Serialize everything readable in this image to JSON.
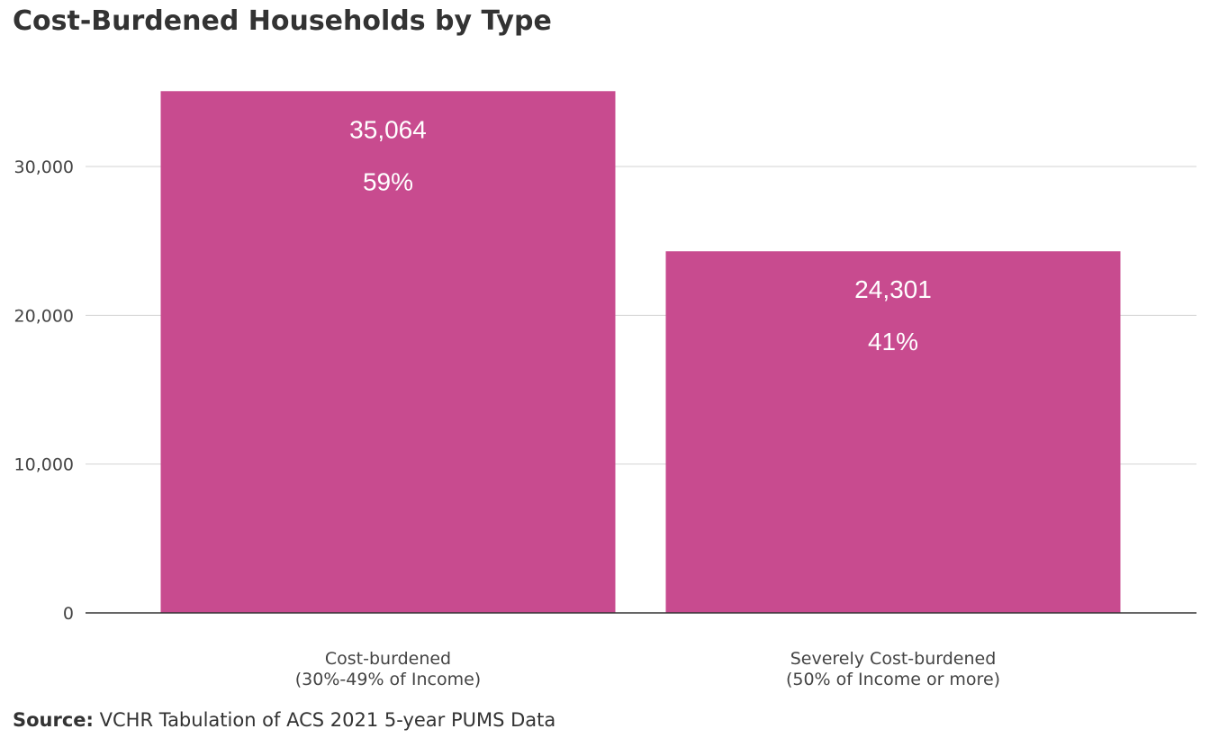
{
  "title": "Cost-Burdened Households by Type",
  "source": {
    "label": "Source:",
    "text": " VCHR Tabulation of ACS 2021 5-year PUMS Data"
  },
  "colors": {
    "bar": "#c84b8f",
    "gridline": "#d3d3d3",
    "axis": "#333333"
  },
  "chart_data": {
    "type": "bar",
    "title": "Cost-Burdened Households by Type",
    "xlabel": "",
    "ylabel": "",
    "categories": [
      [
        "Cost-burdened",
        "(30%-49% of Income)"
      ],
      [
        "Severely Cost-burdened",
        "(50% of Income or more)"
      ]
    ],
    "values": [
      35064,
      24301
    ],
    "value_labels": [
      "35,064",
      "24,301"
    ],
    "percent_labels": [
      "59%",
      "41%"
    ],
    "ylim": [
      0,
      35064
    ],
    "yticks": [
      0,
      10000,
      20000,
      30000
    ],
    "ytick_labels": [
      "0",
      "10,000",
      "20,000",
      "30,000"
    ],
    "grid": true,
    "legend": "none"
  }
}
